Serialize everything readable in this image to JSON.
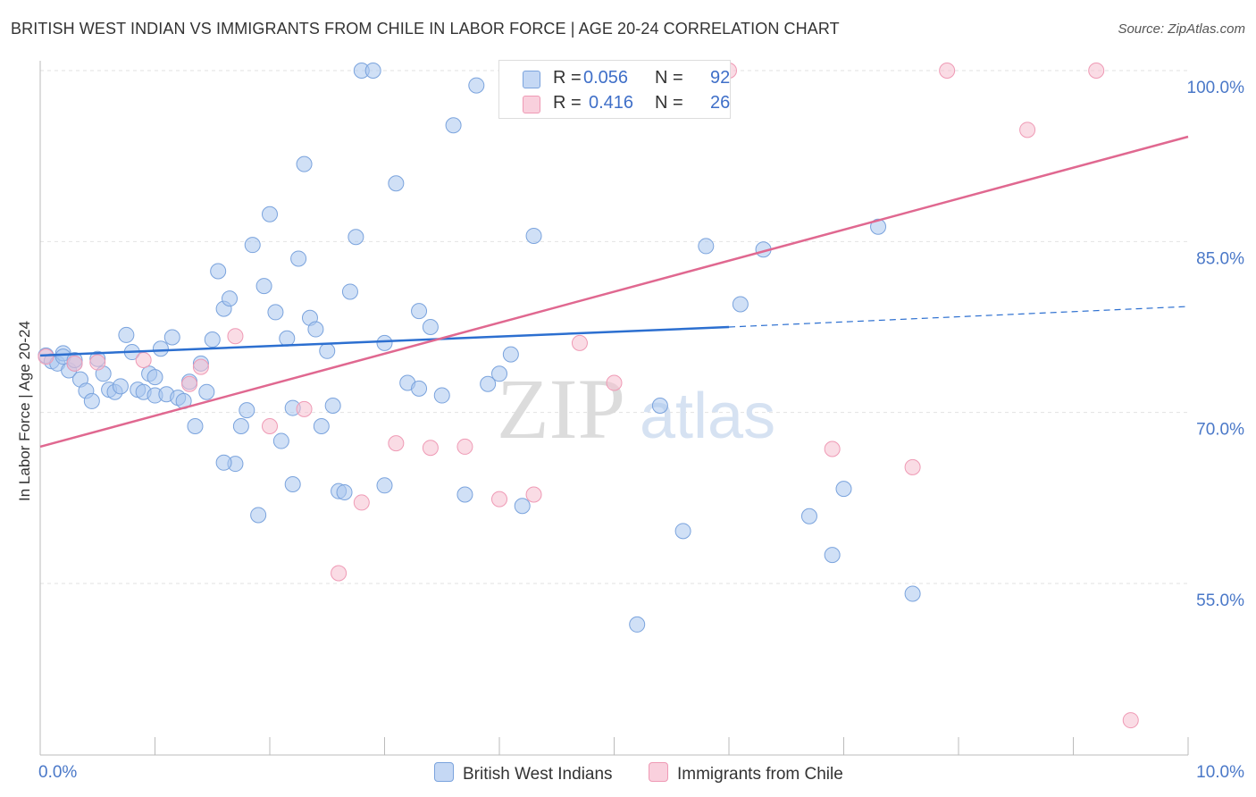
{
  "title": "BRITISH WEST INDIAN VS IMMIGRANTS FROM CHILE IN LABOR FORCE | AGE 20-24 CORRELATION CHART",
  "source": "Source: ZipAtlas.com",
  "colors": {
    "blue_fill": "#aac6ee",
    "blue_stroke": "#7aa3dd",
    "blue_line": "#2c6fd0",
    "pink_fill": "#f6bfd0",
    "pink_stroke": "#ef9ab5",
    "pink_line": "#e06890",
    "tick": "#4a78c8"
  },
  "legend": {
    "r_label": "R =",
    "n_label": "N =",
    "series1": {
      "r": "0.056",
      "n": "92"
    },
    "series2": {
      "r": "0.416",
      "n": "26"
    }
  },
  "watermark": {
    "zip": "ZIP",
    "atlas": "atlas"
  },
  "chart_data": {
    "type": "scatter",
    "title": "BRITISH WEST INDIAN VS IMMIGRANTS FROM CHILE IN LABOR FORCE | AGE 20-24 CORRELATION CHART",
    "xlabel": "",
    "ylabel": "In Labor Force | Age 20-24",
    "x_tick_labels": [
      "0.0%",
      "10.0%"
    ],
    "y_tick_labels": [
      "100.0%",
      "85.0%",
      "70.0%",
      "55.0%"
    ],
    "y_ticks": [
      100,
      85,
      70,
      55
    ],
    "xlim": [
      0,
      10
    ],
    "ylim": [
      43,
      102
    ],
    "grid": true,
    "legend_position": "top-center",
    "series": [
      {
        "name": "British West Indians",
        "r": 0.056,
        "n": 92,
        "trend": {
          "x": [
            0,
            6.0
          ],
          "y": [
            75.0,
            77.5
          ],
          "dashed_extension": {
            "x": [
              6.0,
              10.0
            ],
            "y": [
              77.5,
              79.3
            ]
          }
        },
        "points": [
          [
            0.05,
            75.0
          ],
          [
            0.1,
            74.5
          ],
          [
            0.15,
            74.3
          ],
          [
            0.2,
            75.2
          ],
          [
            0.25,
            73.7
          ],
          [
            0.3,
            74.3
          ],
          [
            0.35,
            72.9
          ],
          [
            0.4,
            71.9
          ],
          [
            0.45,
            71.0
          ],
          [
            0.5,
            74.7
          ],
          [
            0.55,
            73.4
          ],
          [
            0.6,
            72.0
          ],
          [
            0.65,
            71.8
          ],
          [
            0.7,
            72.3
          ],
          [
            0.75,
            76.8
          ],
          [
            0.8,
            75.3
          ],
          [
            0.85,
            72.0
          ],
          [
            0.9,
            71.8
          ],
          [
            0.95,
            73.4
          ],
          [
            1.0,
            71.5
          ],
          [
            1.05,
            75.6
          ],
          [
            1.1,
            71.6
          ],
          [
            1.15,
            76.6
          ],
          [
            1.2,
            71.3
          ],
          [
            1.25,
            71.0
          ],
          [
            1.3,
            72.7
          ],
          [
            1.35,
            68.8
          ],
          [
            1.4,
            74.3
          ],
          [
            1.45,
            71.8
          ],
          [
            1.5,
            76.4
          ],
          [
            1.55,
            82.4
          ],
          [
            1.6,
            79.1
          ],
          [
            1.65,
            80.0
          ],
          [
            1.7,
            65.5
          ],
          [
            1.75,
            68.8
          ],
          [
            1.8,
            70.2
          ],
          [
            1.85,
            84.7
          ],
          [
            1.9,
            61.0
          ],
          [
            1.95,
            81.1
          ],
          [
            2.0,
            87.4
          ],
          [
            2.05,
            78.8
          ],
          [
            2.1,
            67.5
          ],
          [
            2.15,
            76.5
          ],
          [
            2.2,
            63.7
          ],
          [
            2.25,
            83.5
          ],
          [
            2.3,
            91.8
          ],
          [
            2.35,
            78.3
          ],
          [
            2.4,
            77.3
          ],
          [
            2.45,
            68.8
          ],
          [
            2.5,
            75.4
          ],
          [
            2.55,
            70.6
          ],
          [
            2.6,
            63.1
          ],
          [
            2.65,
            63.0
          ],
          [
            2.7,
            80.6
          ],
          [
            2.75,
            85.4
          ],
          [
            2.8,
            100.0
          ],
          [
            2.9,
            100.0
          ],
          [
            3.0,
            63.6
          ],
          [
            3.1,
            90.1
          ],
          [
            3.2,
            72.6
          ],
          [
            3.3,
            78.9
          ],
          [
            3.4,
            77.5
          ],
          [
            3.5,
            71.5
          ],
          [
            3.6,
            95.2
          ],
          [
            3.7,
            62.8
          ],
          [
            3.8,
            98.7
          ],
          [
            3.9,
            72.5
          ],
          [
            4.0,
            73.4
          ],
          [
            4.1,
            75.1
          ],
          [
            4.2,
            61.8
          ],
          [
            4.3,
            85.5
          ],
          [
            4.5,
            100.0
          ],
          [
            4.7,
            100.0
          ],
          [
            4.9,
            100.0
          ],
          [
            5.2,
            51.4
          ],
          [
            5.4,
            70.6
          ],
          [
            5.6,
            59.6
          ],
          [
            5.8,
            84.6
          ],
          [
            6.1,
            79.5
          ],
          [
            6.3,
            84.3
          ],
          [
            6.7,
            60.9
          ],
          [
            6.9,
            57.5
          ],
          [
            7.0,
            63.3
          ],
          [
            7.3,
            86.3
          ],
          [
            7.6,
            54.1
          ],
          [
            0.2,
            74.9
          ],
          [
            0.3,
            74.6
          ],
          [
            1.0,
            73.1
          ],
          [
            1.6,
            65.6
          ],
          [
            2.2,
            70.4
          ],
          [
            3.0,
            76.1
          ],
          [
            3.3,
            72.1
          ]
        ]
      },
      {
        "name": "Immigrants from Chile",
        "r": 0.416,
        "n": 26,
        "trend": {
          "x": [
            0,
            10.0
          ],
          "y": [
            67.0,
            94.2
          ]
        },
        "points": [
          [
            0.05,
            74.9
          ],
          [
            0.3,
            74.3
          ],
          [
            0.5,
            74.4
          ],
          [
            0.9,
            74.6
          ],
          [
            1.3,
            72.5
          ],
          [
            1.7,
            76.7
          ],
          [
            2.0,
            68.8
          ],
          [
            2.3,
            70.3
          ],
          [
            2.6,
            55.9
          ],
          [
            2.8,
            62.1
          ],
          [
            3.1,
            67.3
          ],
          [
            3.4,
            66.9
          ],
          [
            3.7,
            67.0
          ],
          [
            4.0,
            62.4
          ],
          [
            4.3,
            62.8
          ],
          [
            4.7,
            76.1
          ],
          [
            5.0,
            72.6
          ],
          [
            5.5,
            98.7
          ],
          [
            6.0,
            100.0
          ],
          [
            6.9,
            66.8
          ],
          [
            7.6,
            65.2
          ],
          [
            7.9,
            100.0
          ],
          [
            8.6,
            94.8
          ],
          [
            9.2,
            100.0
          ],
          [
            9.5,
            43.0
          ],
          [
            1.4,
            74.0
          ]
        ]
      }
    ]
  }
}
